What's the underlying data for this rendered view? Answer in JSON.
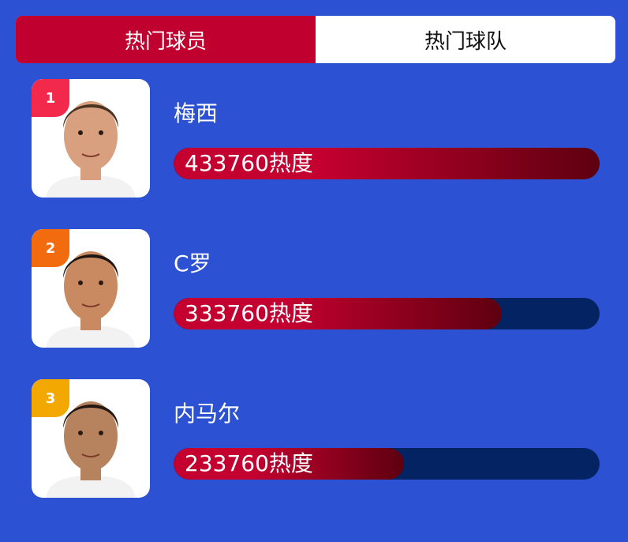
{
  "tabs": [
    {
      "label": "热门球员",
      "active": true
    },
    {
      "label": "热门球队",
      "active": false
    }
  ],
  "players": [
    {
      "rank": "1",
      "name": "梅西",
      "heat_text": "433760热度",
      "heat": 433760,
      "badge_color": "#f2294a",
      "fill_fraction": 1.0,
      "hair_color": "#4a3424",
      "skin_color": "#d8a07e"
    },
    {
      "rank": "2",
      "name": "C罗",
      "heat_text": "333760热度",
      "heat": 333760,
      "badge_color": "#f26b0f",
      "fill_fraction": 0.77,
      "hair_color": "#1e1613",
      "skin_color": "#c98a62"
    },
    {
      "rank": "3",
      "name": "内马尔",
      "heat_text": "233760热度",
      "heat": 233760,
      "badge_color": "#f2a800",
      "fill_fraction": 0.54,
      "hair_color": "#241814",
      "skin_color": "#b7825e"
    }
  ],
  "colors": {
    "background": "#2c52d3",
    "active_tab": "#c0002f",
    "bar_track": "#032363"
  }
}
